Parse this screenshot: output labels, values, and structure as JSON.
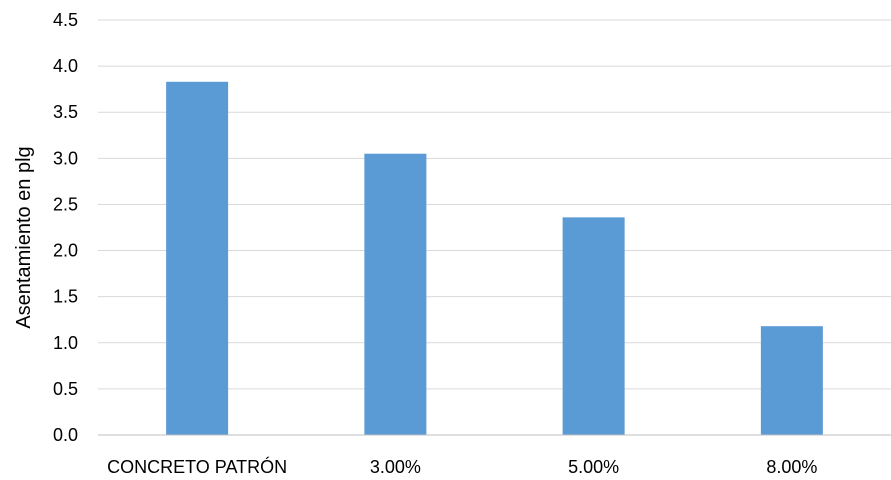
{
  "chart_data": {
    "type": "bar",
    "title": "",
    "xlabel": "",
    "ylabel": "Asentamiento en plg",
    "categories": [
      "CONCRETO PATRÓN",
      "3.00%",
      "5.00%",
      "8.00%"
    ],
    "values": [
      3.83,
      3.05,
      2.36,
      1.18
    ],
    "ylim": [
      0,
      4.5
    ],
    "yticks": [
      "0.0",
      "0.5",
      "1.0",
      "1.5",
      "2.0",
      "2.5",
      "3.0",
      "3.5",
      "4.0",
      "4.5"
    ],
    "grid": true,
    "legend": "none",
    "bar_color": "#5b9bd5"
  }
}
